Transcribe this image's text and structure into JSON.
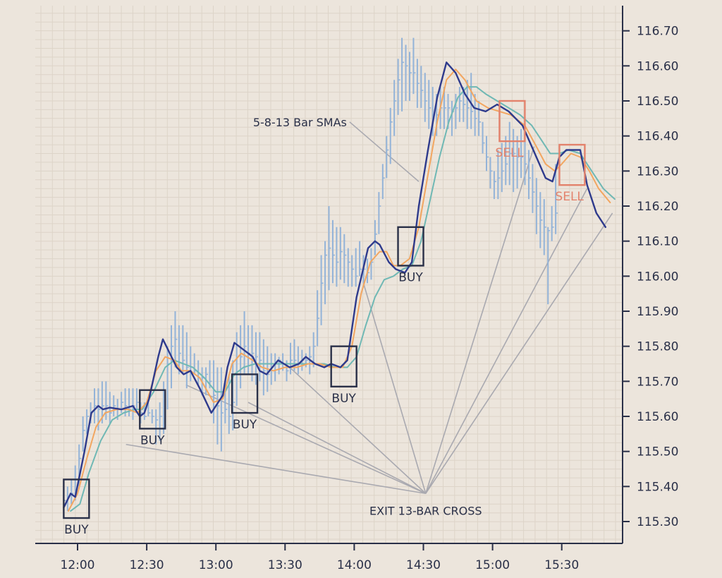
{
  "chart_data": {
    "type": "ohlc-bars",
    "x_axis": {
      "tick_labels": [
        "12:00",
        "12:30",
        "13:00",
        "13:30",
        "14:00",
        "14:30",
        "15:00",
        "15:30"
      ],
      "tick_minutes": [
        0,
        30,
        60,
        90,
        120,
        150,
        180,
        210
      ],
      "range_minutes": [
        -18,
        236
      ]
    },
    "y_axis": {
      "position": "right",
      "tick_values": [
        115.3,
        115.4,
        115.5,
        115.6,
        115.7,
        115.8,
        115.9,
        116.0,
        116.1,
        116.2,
        116.3,
        116.4,
        116.5,
        116.6,
        116.7
      ],
      "tick_labels": [
        "115.30",
        "115.40",
        "115.50",
        "115.60",
        "115.70",
        "115.80",
        "115.90",
        "116.00",
        "116.10",
        "116.20",
        "116.30",
        "116.40",
        "116.50",
        "116.60",
        "116.70"
      ],
      "range": [
        115.245,
        116.78
      ]
    },
    "grid": true,
    "colors": {
      "background": "#ece5dc",
      "grid": "#ddd4c8",
      "axis": "#2a3048",
      "price_bars": "#93b3d8",
      "sma5": "#2e3a8c",
      "sma8": "#f2a660",
      "sma13": "#6fb8b4",
      "buy": "#2a3048",
      "sell": "#e3826c",
      "leader": "#a9a9b0"
    },
    "price": {
      "t_start": -6,
      "t_step": 1.667,
      "lows": [
        115.33,
        115.33,
        115.35,
        115.36,
        115.4,
        115.5,
        115.55,
        115.58,
        115.58,
        115.56,
        115.58,
        115.59,
        115.58,
        115.6,
        115.59,
        115.61,
        115.6,
        115.6,
        115.59,
        115.62,
        115.58,
        115.59,
        115.6,
        115.58,
        115.52,
        115.53,
        115.55,
        115.62,
        115.68,
        115.74,
        115.72,
        115.72,
        115.68,
        115.7,
        115.72,
        115.69,
        115.66,
        115.66,
        115.68,
        115.58,
        115.52,
        115.5,
        115.58,
        115.55,
        115.56,
        115.63,
        115.68,
        115.72,
        115.72,
        115.7,
        115.69,
        115.7,
        115.66,
        115.67,
        115.69,
        115.7,
        115.72,
        115.73,
        115.7,
        115.72,
        115.73,
        115.72,
        115.73,
        115.74,
        115.72,
        115.74,
        115.8,
        115.86,
        115.92,
        115.96,
        115.98,
        115.97,
        115.99,
        115.98,
        115.97,
        115.97,
        115.97,
        116.0,
        115.98,
        115.98,
        115.99,
        116.06,
        116.12,
        116.22,
        116.28,
        116.32,
        116.4,
        116.46,
        116.47,
        116.5,
        116.5,
        116.52,
        116.48,
        116.48,
        116.44,
        116.42,
        116.4,
        116.4,
        116.42,
        116.42,
        116.42,
        116.4,
        116.42,
        116.44,
        116.44,
        116.42,
        116.42,
        116.4,
        116.4,
        116.35,
        116.3,
        116.25,
        116.22,
        116.22,
        116.24,
        116.26,
        116.26,
        116.24,
        116.25,
        116.28,
        116.26,
        116.22,
        116.18,
        116.12,
        116.08,
        116.06,
        115.92,
        116.1,
        116.12
      ],
      "highs": [
        115.39,
        115.4,
        115.42,
        115.46,
        115.52,
        115.6,
        115.62,
        115.64,
        115.68,
        115.68,
        115.7,
        115.7,
        115.67,
        115.66,
        115.65,
        115.67,
        115.68,
        115.68,
        115.68,
        115.68,
        115.64,
        115.64,
        115.64,
        115.62,
        115.62,
        115.64,
        115.7,
        115.8,
        115.86,
        115.9,
        115.86,
        115.86,
        115.84,
        115.8,
        115.78,
        115.76,
        115.74,
        115.74,
        115.76,
        115.76,
        115.74,
        115.74,
        115.7,
        115.72,
        115.76,
        115.84,
        115.86,
        115.9,
        115.86,
        115.86,
        115.84,
        115.84,
        115.82,
        115.8,
        115.78,
        115.78,
        115.77,
        115.78,
        115.76,
        115.81,
        115.82,
        115.8,
        115.79,
        115.78,
        115.8,
        115.84,
        115.96,
        116.06,
        116.1,
        116.2,
        116.16,
        116.14,
        116.14,
        116.12,
        116.08,
        116.06,
        116.08,
        116.1,
        116.06,
        116.05,
        116.08,
        116.16,
        116.24,
        116.32,
        116.4,
        116.48,
        116.56,
        116.62,
        116.68,
        116.66,
        116.64,
        116.68,
        116.62,
        116.6,
        116.58,
        116.56,
        116.54,
        116.52,
        116.54,
        116.54,
        116.52,
        116.5,
        116.52,
        116.54,
        116.54,
        116.56,
        116.58,
        116.52,
        116.5,
        116.44,
        116.4,
        116.34,
        116.3,
        116.36,
        116.38,
        116.4,
        116.44,
        116.42,
        116.4,
        116.42,
        116.4,
        116.36,
        116.32,
        116.28,
        116.24,
        116.22,
        116.14,
        116.2,
        116.32
      ],
      "closes": [
        115.36,
        115.37,
        115.38,
        115.42,
        115.48,
        115.56,
        115.6,
        115.61,
        115.63,
        115.62,
        115.63,
        115.63,
        115.61,
        115.63,
        115.62,
        115.64,
        115.63,
        115.62,
        115.63,
        115.64,
        115.61,
        115.6,
        115.61,
        115.6,
        115.59,
        115.6,
        115.66,
        115.75,
        115.8,
        115.82,
        115.78,
        115.76,
        115.74,
        115.74,
        115.73,
        115.71,
        115.71,
        115.72,
        115.7,
        115.66,
        115.63,
        115.61,
        115.62,
        115.6,
        115.64,
        115.72,
        115.77,
        115.8,
        115.78,
        115.78,
        115.77,
        115.76,
        115.73,
        115.72,
        115.74,
        115.75,
        115.76,
        115.75,
        115.73,
        115.76,
        115.76,
        115.75,
        115.76,
        115.76,
        115.77,
        115.8,
        115.88,
        115.98,
        116.06,
        116.08,
        116.06,
        116.04,
        116.07,
        116.06,
        116.04,
        116.02,
        116.0,
        116.02,
        116.02,
        116.01,
        116.04,
        116.12,
        116.2,
        116.28,
        116.36,
        116.44,
        116.5,
        116.56,
        116.61,
        116.6,
        116.58,
        116.58,
        116.55,
        116.53,
        116.5,
        116.48,
        116.46,
        116.46,
        116.48,
        116.48,
        116.48,
        116.47,
        116.48,
        116.5,
        116.49,
        116.48,
        116.47,
        116.45,
        116.44,
        116.38,
        116.34,
        116.3,
        116.27,
        116.28,
        116.3,
        116.32,
        116.35,
        116.35,
        116.34,
        116.34,
        116.32,
        116.28,
        116.24,
        116.2,
        116.16,
        116.14,
        116.13,
        116.14,
        116.18
      ]
    },
    "sma5_points": [
      [
        -6,
        115.34
      ],
      [
        -3,
        115.38
      ],
      [
        -1,
        115.37
      ],
      [
        3,
        115.5
      ],
      [
        6,
        115.61
      ],
      [
        9,
        115.63
      ],
      [
        11,
        115.62
      ],
      [
        14,
        115.625
      ],
      [
        19,
        115.62
      ],
      [
        24,
        115.63
      ],
      [
        27,
        115.6
      ],
      [
        29,
        115.61
      ],
      [
        31,
        115.65
      ],
      [
        35,
        115.77
      ],
      [
        37,
        115.82
      ],
      [
        40,
        115.78
      ],
      [
        43,
        115.74
      ],
      [
        46,
        115.72
      ],
      [
        49,
        115.73
      ],
      [
        53,
        115.68
      ],
      [
        58,
        115.61
      ],
      [
        63,
        115.66
      ],
      [
        65,
        115.74
      ],
      [
        68,
        115.81
      ],
      [
        72,
        115.79
      ],
      [
        76,
        115.77
      ],
      [
        79,
        115.73
      ],
      [
        82,
        115.72
      ],
      [
        87,
        115.76
      ],
      [
        92,
        115.74
      ],
      [
        96,
        115.75
      ],
      [
        99,
        115.77
      ],
      [
        103,
        115.75
      ],
      [
        107,
        115.74
      ],
      [
        110,
        115.75
      ],
      [
        114,
        115.74
      ],
      [
        117,
        115.76
      ],
      [
        121,
        115.94
      ],
      [
        126,
        116.08
      ],
      [
        129,
        116.1
      ],
      [
        131,
        116.09
      ],
      [
        135,
        116.04
      ],
      [
        138,
        116.02
      ],
      [
        142,
        116.01
      ],
      [
        145,
        116.04
      ],
      [
        148,
        116.2
      ],
      [
        152,
        116.36
      ],
      [
        156,
        116.51
      ],
      [
        160,
        116.61
      ],
      [
        164,
        116.58
      ],
      [
        168,
        116.52
      ],
      [
        172,
        116.48
      ],
      [
        177,
        116.47
      ],
      [
        182,
        116.49
      ],
      [
        187,
        116.47
      ],
      [
        193,
        116.43
      ],
      [
        199,
        116.34
      ],
      [
        203,
        116.28
      ],
      [
        206,
        116.27
      ],
      [
        209,
        116.34
      ],
      [
        212,
        116.36
      ],
      [
        218,
        116.36
      ],
      [
        221,
        116.26
      ],
      [
        225,
        116.18
      ],
      [
        229,
        116.14
      ]
    ],
    "sma8_points": [
      [
        -4,
        115.33
      ],
      [
        0,
        115.38
      ],
      [
        4,
        115.48
      ],
      [
        8,
        115.57
      ],
      [
        12,
        115.61
      ],
      [
        17,
        115.62
      ],
      [
        22,
        115.62
      ],
      [
        26,
        115.61
      ],
      [
        30,
        115.64
      ],
      [
        34,
        115.73
      ],
      [
        38,
        115.77
      ],
      [
        42,
        115.76
      ],
      [
        45,
        115.73
      ],
      [
        49,
        115.73
      ],
      [
        53,
        115.71
      ],
      [
        59,
        115.64
      ],
      [
        63,
        115.65
      ],
      [
        67,
        115.75
      ],
      [
        71,
        115.78
      ],
      [
        76,
        115.76
      ],
      [
        80,
        115.74
      ],
      [
        85,
        115.73
      ],
      [
        90,
        115.74
      ],
      [
        95,
        115.74
      ],
      [
        100,
        115.75
      ],
      [
        105,
        115.75
      ],
      [
        110,
        115.74
      ],
      [
        115,
        115.74
      ],
      [
        119,
        115.8
      ],
      [
        123,
        115.95
      ],
      [
        127,
        116.04
      ],
      [
        131,
        116.07
      ],
      [
        134,
        116.07
      ],
      [
        137,
        116.03
      ],
      [
        140,
        116.03
      ],
      [
        144,
        116.05
      ],
      [
        148,
        116.14
      ],
      [
        152,
        116.29
      ],
      [
        156,
        116.44
      ],
      [
        160,
        116.56
      ],
      [
        164,
        116.59
      ],
      [
        168,
        116.56
      ],
      [
        173,
        116.5
      ],
      [
        178,
        116.48
      ],
      [
        183,
        116.47
      ],
      [
        188,
        116.46
      ],
      [
        194,
        116.43
      ],
      [
        199,
        116.37
      ],
      [
        203,
        116.32
      ],
      [
        207,
        116.3
      ],
      [
        210,
        116.32
      ],
      [
        214,
        116.35
      ],
      [
        218,
        116.34
      ],
      [
        222,
        116.3
      ],
      [
        226,
        116.25
      ],
      [
        231,
        116.21
      ]
    ],
    "sma13_points": [
      [
        -3,
        115.33
      ],
      [
        1,
        115.35
      ],
      [
        5,
        115.44
      ],
      [
        10,
        115.53
      ],
      [
        15,
        115.59
      ],
      [
        20,
        115.61
      ],
      [
        25,
        115.62
      ],
      [
        28,
        115.62
      ],
      [
        33,
        115.67
      ],
      [
        38,
        115.74
      ],
      [
        42,
        115.76
      ],
      [
        46,
        115.75
      ],
      [
        50,
        115.74
      ],
      [
        55,
        115.71
      ],
      [
        60,
        115.67
      ],
      [
        64,
        115.67
      ],
      [
        68,
        115.72
      ],
      [
        72,
        115.74
      ],
      [
        77,
        115.75
      ],
      [
        82,
        115.75
      ],
      [
        87,
        115.75
      ],
      [
        92,
        115.75
      ],
      [
        97,
        115.75
      ],
      [
        102,
        115.75
      ],
      [
        107,
        115.75
      ],
      [
        112,
        115.74
      ],
      [
        117,
        115.74
      ],
      [
        121,
        115.77
      ],
      [
        125,
        115.86
      ],
      [
        129,
        115.94
      ],
      [
        133,
        115.99
      ],
      [
        137,
        116.0
      ],
      [
        141,
        116.02
      ],
      [
        145,
        116.03
      ],
      [
        149,
        116.1
      ],
      [
        153,
        116.22
      ],
      [
        157,
        116.34
      ],
      [
        161,
        116.44
      ],
      [
        165,
        116.51
      ],
      [
        169,
        116.54
      ],
      [
        173,
        116.54
      ],
      [
        177,
        116.52
      ],
      [
        182,
        116.5
      ],
      [
        187,
        116.48
      ],
      [
        192,
        116.46
      ],
      [
        197,
        116.43
      ],
      [
        201,
        116.39
      ],
      [
        205,
        116.35
      ],
      [
        209,
        116.35
      ],
      [
        213,
        116.36
      ],
      [
        218,
        116.35
      ],
      [
        223,
        116.3
      ],
      [
        228,
        116.25
      ],
      [
        233,
        116.22
      ]
    ],
    "signals": [
      {
        "kind": "buy",
        "label": "BUY",
        "t_range": [
          -6,
          5
        ],
        "price_range": [
          115.31,
          115.42
        ],
        "label_position": "below"
      },
      {
        "kind": "buy",
        "label": "BUY",
        "t_range": [
          27,
          38
        ],
        "price_range": [
          115.565,
          115.675
        ],
        "label_position": "below"
      },
      {
        "kind": "buy",
        "label": "BUY",
        "t_range": [
          67,
          78
        ],
        "price_range": [
          115.61,
          115.72
        ],
        "label_position": "below"
      },
      {
        "kind": "buy",
        "label": "BUY",
        "t_range": [
          110,
          121
        ],
        "price_range": [
          115.685,
          115.8
        ],
        "label_position": "below"
      },
      {
        "kind": "buy",
        "label": "BUY",
        "t_range": [
          139,
          150
        ],
        "price_range": [
          116.03,
          116.14
        ],
        "label_position": "below"
      },
      {
        "kind": "sell",
        "label": "SELL",
        "t_range": [
          183,
          194
        ],
        "price_range": [
          116.385,
          116.5
        ],
        "label_position": "below-left"
      },
      {
        "kind": "sell",
        "label": "SELL",
        "t_range": [
          209,
          220
        ],
        "price_range": [
          116.26,
          116.375
        ],
        "label_position": "below-left"
      }
    ],
    "annotations": [
      {
        "text": "5-8-13 Bar SMAs",
        "anchor": [
          118,
          116.44
        ],
        "targets": [
          [
            148,
            116.27
          ]
        ]
      },
      {
        "text": "EXIT 13-BAR CROSS",
        "anchor": [
          151,
          115.38
        ],
        "targets": [
          [
            21,
            115.52
          ],
          [
            47,
            115.69
          ],
          [
            74,
            115.64
          ],
          [
            92,
            115.74
          ],
          [
            124,
            115.98
          ],
          [
            198,
            116.37
          ],
          [
            221,
            116.25
          ],
          [
            232,
            116.18
          ]
        ]
      }
    ]
  }
}
